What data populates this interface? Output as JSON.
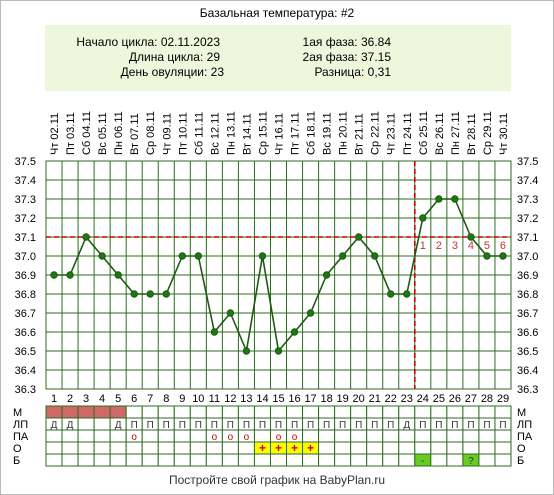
{
  "chart_data": {
    "type": "line",
    "title": "Базальная температура: #2",
    "info": {
      "cycle_start": "Начало цикла: 02.11.2023",
      "cycle_length": "Длина цикла: 29",
      "ovulation_day": "День овуляции: 23",
      "phase1": "1ая фаза: 36.84",
      "phase2": "2ая фаза: 37.15",
      "difference": "Разница: 0,31"
    },
    "dates": [
      "Чт 02.11",
      "Пт 03.11",
      "Сб 04.11",
      "Вс 05.11",
      "Пн 06.11",
      "Вт 07.11",
      "Ср 08.11",
      "Чт 09.11",
      "Пт 10.11",
      "Сб 11.11",
      "Вс 12.11",
      "Пн 13.11",
      "Вт 14.11",
      "Ср 15.11",
      "Чт 16.11",
      "Пт 17.11",
      "Сб 18.11",
      "Вс 19.11",
      "Пн 20.11",
      "Вт 21.11",
      "Ср 22.11",
      "Чт 23.11",
      "Пт 24.11",
      "Сб 25.11",
      "Вс 26.11",
      "Пн 27.11",
      "Вт 28.11",
      "Ср 29.11",
      "Чт 30.11"
    ],
    "days": [
      "1",
      "2",
      "3",
      "4",
      "5",
      "6",
      "7",
      "8",
      "9",
      "10",
      "11",
      "12",
      "13",
      "14",
      "15",
      "16",
      "17",
      "18",
      "19",
      "20",
      "21",
      "22",
      "23",
      "24",
      "25",
      "26",
      "27",
      "28",
      "29"
    ],
    "values": [
      36.9,
      36.9,
      37.1,
      37.0,
      36.9,
      36.8,
      36.8,
      36.8,
      37.0,
      37.0,
      36.6,
      36.7,
      36.5,
      37.0,
      36.5,
      36.6,
      36.7,
      36.9,
      37.0,
      37.1,
      37.0,
      36.8,
      36.8,
      37.2,
      37.3,
      37.3,
      37.1,
      37.0,
      37.0
    ],
    "y_ticks": [
      "37.5",
      "37.4",
      "37.3",
      "37.2",
      "37.1",
      "37.0",
      "36.9",
      "36.8",
      "36.7",
      "36.6",
      "36.5",
      "36.4",
      "36.3"
    ],
    "ylim": [
      36.3,
      37.5
    ],
    "coverline": 37.1,
    "ovulation_marker_day": 23,
    "post_ovulation_labels": [
      "1",
      "2",
      "3",
      "4",
      "5",
      "6"
    ],
    "grid": true,
    "colors": {
      "line": "#1e5a12",
      "point": "#1a7a10",
      "grid": "#2e6e1e",
      "coverline": "#cc0000",
      "info_bg": "#eef6dc",
      "period": "#d06868",
      "marker_yellow": "#ffff00",
      "marker_green": "#66cc22",
      "post_label": "#b83a3a"
    },
    "rows": {
      "labels": [
        "М",
        "ЛП",
        "ПА",
        "О",
        "Б"
      ],
      "right_labels": [
        "М",
        "ЛП",
        "ПА",
        "О",
        "Б"
      ],
      "period_days": [
        1,
        2,
        3,
        4,
        5
      ],
      "lp": [
        "Д",
        "Д",
        "",
        "",
        "Д",
        "П",
        "П",
        "П",
        "П",
        "П",
        "П",
        "П",
        "П",
        "П",
        "П",
        "П",
        "П",
        "П",
        "П",
        "П",
        "П",
        "П",
        "Д",
        "П",
        "П",
        "П",
        "П",
        "П",
        "П"
      ],
      "pa": [
        "",
        "",
        "",
        "",
        "",
        "о",
        "",
        "",
        "",
        "",
        "о",
        "о",
        "о",
        "",
        "о",
        "о",
        "",
        "",
        "",
        "",
        "",
        "",
        "",
        "",
        "",
        "",
        "",
        "",
        ""
      ],
      "o": [
        "",
        "",
        "",
        "",
        "",
        "",
        "",
        "",
        "",
        "",
        "",
        "",
        "",
        "+",
        "+",
        "+",
        "+",
        "",
        "",
        "",
        "",
        "",
        "",
        "",
        "",
        "",
        "",
        "",
        ""
      ],
      "b": [
        "",
        "",
        "",
        "",
        "",
        "",
        "",
        "",
        "",
        "",
        "",
        "",
        "",
        "",
        "",
        "",
        "",
        "",
        "",
        "",
        "",
        "",
        "",
        "-",
        "",
        "",
        "?",
        "",
        ""
      ]
    },
    "footer": "Постройте свой график на BabyPlan.ru"
  }
}
